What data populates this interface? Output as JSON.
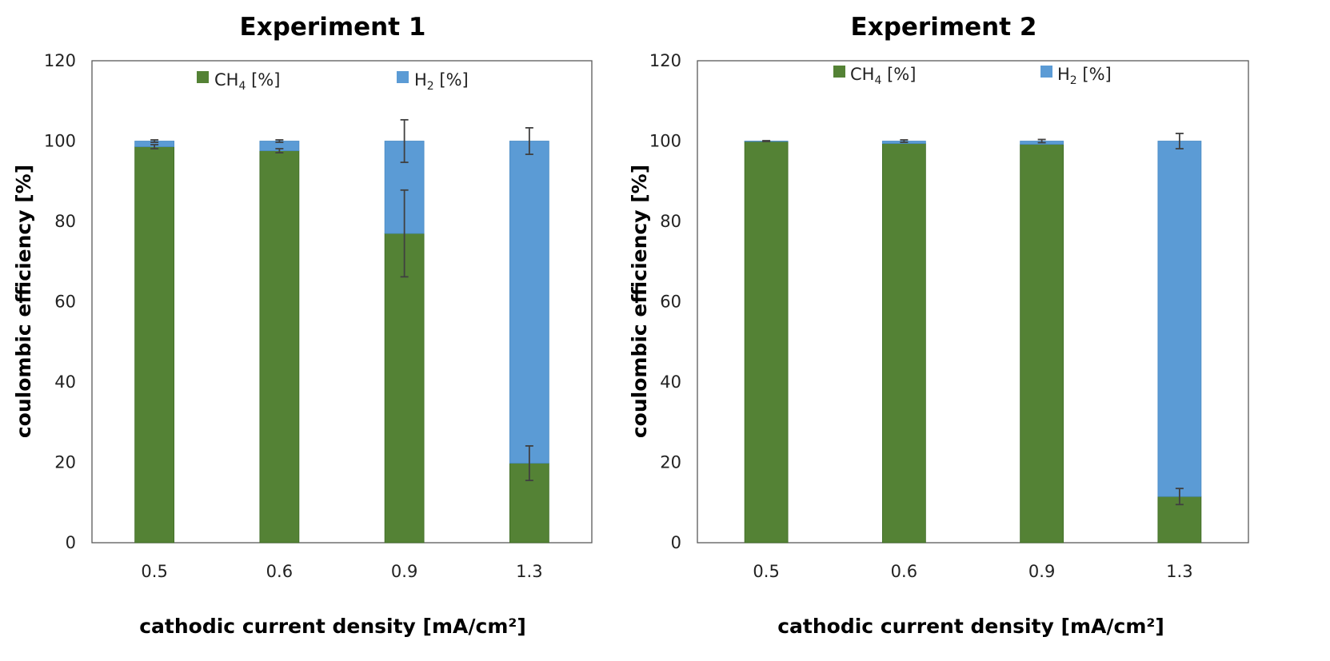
{
  "chart_data": [
    {
      "type": "bar",
      "stacked": true,
      "title": "Experiment 1",
      "xlabel": "cathodic current density [mA/cm²]",
      "ylabel": "coulombic efficiency [%]",
      "categories": [
        "0.5",
        "0.6",
        "0.9",
        "1.3"
      ],
      "ylim": [
        0,
        120
      ],
      "yticks": [
        0,
        20,
        40,
        60,
        80,
        100,
        120
      ],
      "grid": false,
      "legend_position": "top",
      "series": [
        {
          "name": "CH4 [%]",
          "legend_main": "CH",
          "legend_sub": "4",
          "legend_suffix": " [%]",
          "color": "#548235",
          "values": [
            98.6,
            97.6,
            77.0,
            19.8
          ],
          "error": [
            0.5,
            0.5,
            10.8,
            4.3
          ]
        },
        {
          "name": "H2 [%]",
          "legend_main": "H",
          "legend_sub": "2",
          "legend_suffix": " [%]",
          "color": "#5b9bd5",
          "values": [
            1.4,
            2.4,
            23.0,
            80.2
          ],
          "error": [
            0.3,
            0.3,
            5.3,
            3.3
          ]
        }
      ]
    },
    {
      "type": "bar",
      "stacked": true,
      "title": "Experiment 2",
      "xlabel": "cathodic current density [mA/cm²]",
      "ylabel": "coulombic efficiency [%]",
      "categories": [
        "0.5",
        "0.6",
        "0.9",
        "1.3"
      ],
      "ylim": [
        0,
        120
      ],
      "yticks": [
        0,
        20,
        40,
        60,
        80,
        100,
        120
      ],
      "grid": false,
      "legend_position": "top",
      "series": [
        {
          "name": "CH4 [%]",
          "legend_main": "CH",
          "legend_sub": "4",
          "legend_suffix": " [%]",
          "color": "#548235",
          "values": [
            99.9,
            99.4,
            99.2,
            11.5
          ],
          "error": [
            0.0,
            0.0,
            0.0,
            2.0
          ]
        },
        {
          "name": "H2 [%]",
          "legend_main": "H",
          "legend_sub": "2",
          "legend_suffix": " [%]",
          "color": "#5b9bd5",
          "values": [
            0.1,
            0.6,
            0.8,
            88.5
          ],
          "error": [
            0.1,
            0.3,
            0.4,
            1.9
          ]
        }
      ]
    }
  ]
}
